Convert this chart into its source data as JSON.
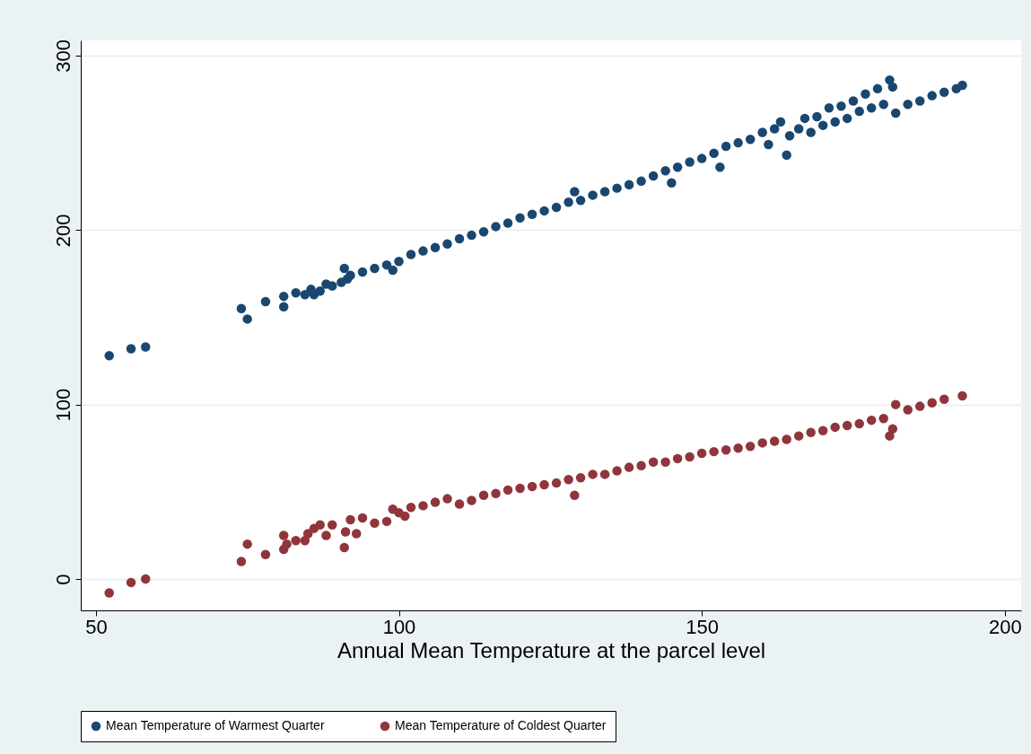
{
  "chart_data": {
    "type": "scatter",
    "xlabel": "Annual Mean Temperature at the parcel level",
    "xlim": [
      47.5,
      202.7
    ],
    "xticks": [
      50,
      100,
      150,
      200
    ],
    "ylim": [
      -18,
      308.7
    ],
    "yticks": [
      0,
      100,
      200,
      300
    ],
    "grid": "y",
    "legend": "bottom",
    "marker": "circle",
    "series": [
      {
        "name": "Mean Temperature of Warmest Quarter",
        "color": "#1a476f",
        "x": [
          52.2,
          55.8,
          58.2,
          74,
          75,
          78,
          81,
          81,
          83,
          84.5,
          85.5,
          86,
          87,
          88,
          89,
          90.5,
          91,
          91.5,
          92,
          94,
          96,
          98,
          99,
          100,
          102,
          104,
          106,
          108,
          110,
          112,
          114,
          116,
          118,
          120,
          122,
          124,
          126,
          128,
          129,
          130,
          132,
          134,
          136,
          138,
          140,
          142,
          144,
          145,
          146,
          148,
          150,
          152,
          153,
          154,
          156,
          158,
          160,
          161,
          162,
          163,
          164,
          164.5,
          166,
          167,
          168,
          169,
          170,
          171,
          172,
          173,
          174,
          175,
          176,
          177,
          178,
          179,
          180,
          181,
          181.5,
          182,
          184,
          186,
          188,
          190,
          192,
          193
        ],
        "values": [
          128,
          132,
          133,
          155,
          149,
          159,
          162,
          156,
          164,
          163,
          166,
          163,
          165,
          169,
          168,
          170,
          178,
          172,
          174,
          176,
          178,
          180,
          177,
          182,
          186,
          188,
          190,
          192,
          195,
          197,
          199,
          202,
          204,
          207,
          209,
          211,
          213,
          216,
          222,
          217,
          220,
          222,
          224,
          226,
          228,
          231,
          234,
          227,
          236,
          239,
          241,
          244,
          236,
          248,
          250,
          252,
          256,
          249,
          258,
          262,
          243,
          254,
          258,
          264,
          256,
          265,
          260,
          270,
          262,
          271,
          264,
          274,
          268,
          278,
          270,
          281,
          272,
          286,
          282,
          267,
          272,
          274,
          277,
          279,
          281,
          283
        ]
      },
      {
        "name": "Mean Temperature of Coldest Quarter",
        "color": "#90353b",
        "x": [
          52.2,
          55.8,
          58.2,
          74,
          75,
          78,
          81,
          81,
          81.5,
          83,
          84.5,
          85,
          86,
          87,
          88,
          89,
          91,
          91.2,
          92,
          93,
          94,
          96,
          98,
          99,
          100,
          101,
          102,
          104,
          106,
          108,
          110,
          112,
          114,
          116,
          118,
          120,
          122,
          124,
          126,
          128,
          129,
          130,
          132,
          134,
          136,
          138,
          140,
          142,
          144,
          146,
          148,
          150,
          152,
          154,
          156,
          158,
          160,
          162,
          164,
          166,
          168,
          170,
          172,
          174,
          176,
          178,
          180,
          181,
          181.5,
          182,
          184,
          186,
          188,
          190,
          193
        ],
        "values": [
          -8,
          -2,
          0,
          10,
          20,
          14,
          25,
          17,
          20,
          22,
          22,
          26,
          29,
          31,
          25,
          31,
          18,
          27,
          34,
          26,
          35,
          32,
          33,
          40,
          38,
          36,
          41,
          42,
          44,
          46,
          43,
          45,
          48,
          49,
          51,
          52,
          53,
          54,
          55,
          57,
          48,
          58,
          60,
          60,
          62,
          64,
          65,
          67,
          67,
          69,
          70,
          72,
          73,
          74,
          75,
          76,
          78,
          79,
          80,
          82,
          84,
          85,
          87,
          88,
          89,
          91,
          92,
          82,
          86,
          100,
          97,
          99,
          101,
          103,
          105
        ]
      }
    ]
  }
}
